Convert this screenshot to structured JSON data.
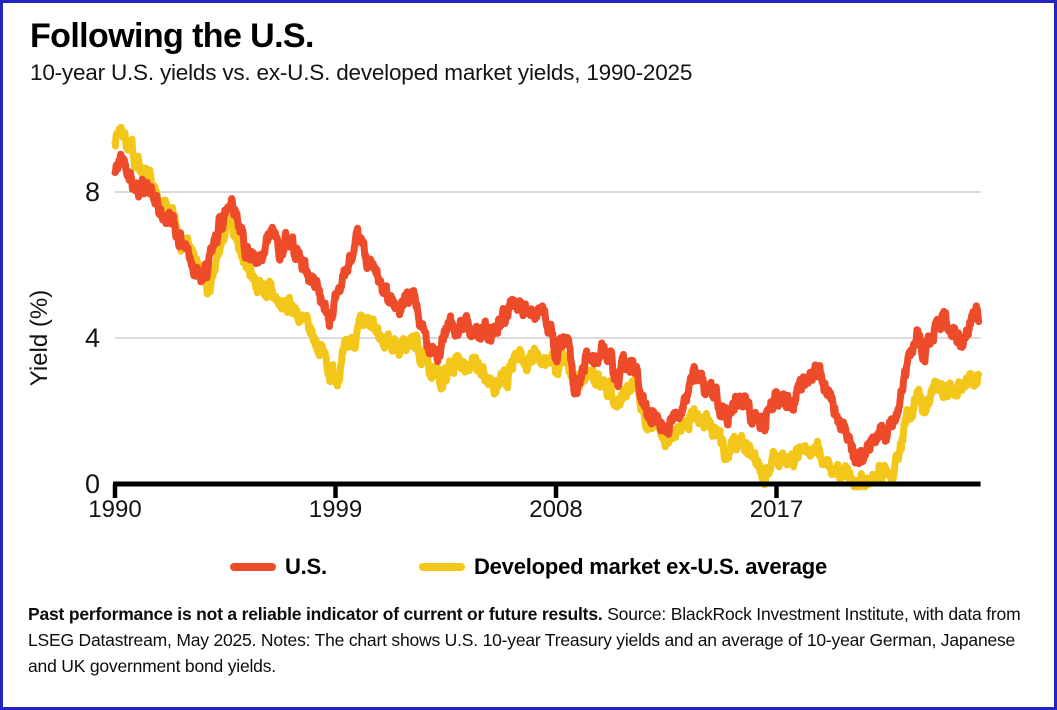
{
  "panel": {
    "border_color": "#2323bd",
    "background_color": "#ffffff"
  },
  "chart_data": {
    "type": "line",
    "title": "Following the U.S.",
    "subtitle": "10-year U.S. yields vs. ex-U.S. developed market yields, 1990-2025",
    "ylabel": "Yield (%)",
    "ylim": [
      0,
      10
    ],
    "yticks": [
      0,
      4,
      8
    ],
    "xticks": [
      1990,
      1999,
      2008,
      2017
    ],
    "x_range": [
      1990,
      2025.33
    ],
    "grid": "horizontal-gridlines-at-4-and-8",
    "legend_position": "bottom",
    "axis_color": "#000000",
    "gridline_color": "#cfcfcf",
    "x_start": 1990,
    "x_interval_years": 0.25,
    "series": [
      {
        "name": "U.S.",
        "color": "#ee4b2a",
        "values": [
          8.5,
          8.9,
          8.8,
          8.3,
          8.1,
          8.2,
          7.9,
          7.5,
          7.2,
          7.4,
          6.9,
          6.7,
          6.4,
          6.0,
          5.5,
          5.8,
          6.3,
          7.1,
          7.4,
          7.9,
          7.4,
          6.6,
          6.3,
          5.9,
          5.9,
          6.7,
          6.8,
          6.4,
          6.7,
          6.6,
          6.3,
          5.9,
          5.6,
          5.5,
          4.9,
          4.5,
          5.1,
          5.6,
          5.9,
          6.3,
          6.6,
          6.2,
          5.9,
          5.6,
          5.1,
          5.3,
          4.8,
          4.8,
          5.0,
          5.1,
          4.2,
          3.9,
          3.9,
          3.4,
          4.3,
          4.3,
          4.0,
          4.7,
          4.2,
          4.2,
          4.3,
          4.0,
          4.2,
          4.5,
          4.6,
          5.1,
          4.8,
          4.6,
          4.6,
          5.0,
          4.6,
          4.1,
          3.6,
          3.9,
          3.8,
          2.4,
          2.9,
          3.5,
          3.4,
          3.6,
          3.7,
          3.3,
          2.6,
          3.1,
          3.4,
          3.1,
          2.2,
          2.0,
          2.0,
          1.6,
          1.65,
          1.75,
          1.95,
          2.4,
          2.8,
          2.95,
          2.7,
          2.6,
          2.5,
          2.2,
          2.0,
          2.3,
          2.2,
          2.25,
          1.85,
          1.6,
          1.55,
          2.3,
          2.4,
          2.25,
          2.25,
          2.4,
          2.85,
          2.95,
          3.0,
          3.1,
          2.6,
          2.1,
          1.7,
          1.85,
          1.1,
          0.65,
          0.68,
          0.9,
          1.45,
          1.6,
          1.35,
          1.55,
          2.1,
          3.0,
          3.6,
          4.1,
          3.6,
          3.75,
          4.3,
          4.7,
          4.15,
          4.45,
          3.9,
          4.3,
          4.55,
          4.45
        ]
      },
      {
        "name": "Developed market ex-U.S. average",
        "color": "#f3c71a",
        "values": [
          9.5,
          9.8,
          9.4,
          9.0,
          8.8,
          8.4,
          8.0,
          7.7,
          7.5,
          7.3,
          7.0,
          6.8,
          6.5,
          6.1,
          5.7,
          5.3,
          5.5,
          6.3,
          6.9,
          7.1,
          6.7,
          6.2,
          5.9,
          5.6,
          5.4,
          5.3,
          5.1,
          4.9,
          4.8,
          4.9,
          4.6,
          4.3,
          4.1,
          3.9,
          3.6,
          3.1,
          3.0,
          3.3,
          3.7,
          4.0,
          4.2,
          4.3,
          4.2,
          4.1,
          3.9,
          4.0,
          3.8,
          3.7,
          3.8,
          3.9,
          3.5,
          3.3,
          3.1,
          2.8,
          3.0,
          3.3,
          3.3,
          3.5,
          3.3,
          3.1,
          3.0,
          2.85,
          2.7,
          2.9,
          3.0,
          3.3,
          3.35,
          3.2,
          3.3,
          3.6,
          3.5,
          3.3,
          3.1,
          3.4,
          3.4,
          2.7,
          2.7,
          2.9,
          2.9,
          2.8,
          2.9,
          2.6,
          2.2,
          2.4,
          2.6,
          2.6,
          2.1,
          1.85,
          1.8,
          1.6,
          1.4,
          1.4,
          1.5,
          1.6,
          1.9,
          1.9,
          1.8,
          1.6,
          1.35,
          1.05,
          0.85,
          1.15,
          1.2,
          1.05,
          0.8,
          0.55,
          0.35,
          0.6,
          0.75,
          0.7,
          0.75,
          0.8,
          0.9,
          0.85,
          0.85,
          0.9,
          0.65,
          0.45,
          0.15,
          0.25,
          0.2,
          0.1,
          0.05,
          0.1,
          0.35,
          0.45,
          0.4,
          0.5,
          0.9,
          1.5,
          1.9,
          2.3,
          2.25,
          2.35,
          2.6,
          2.85,
          2.55,
          2.75,
          2.6,
          2.8,
          2.9,
          3.0
        ]
      }
    ]
  },
  "footer": {
    "disclaimer": "Past performance is not a reliable indicator of current or future results.",
    "source_notes": "Source: BlackRock Investment Institute, with data from LSEG Datastream, May 2025. Notes: The chart shows U.S. 10-year Treasury yields and an average of 10-year German, Japanese and UK government bond yields."
  }
}
